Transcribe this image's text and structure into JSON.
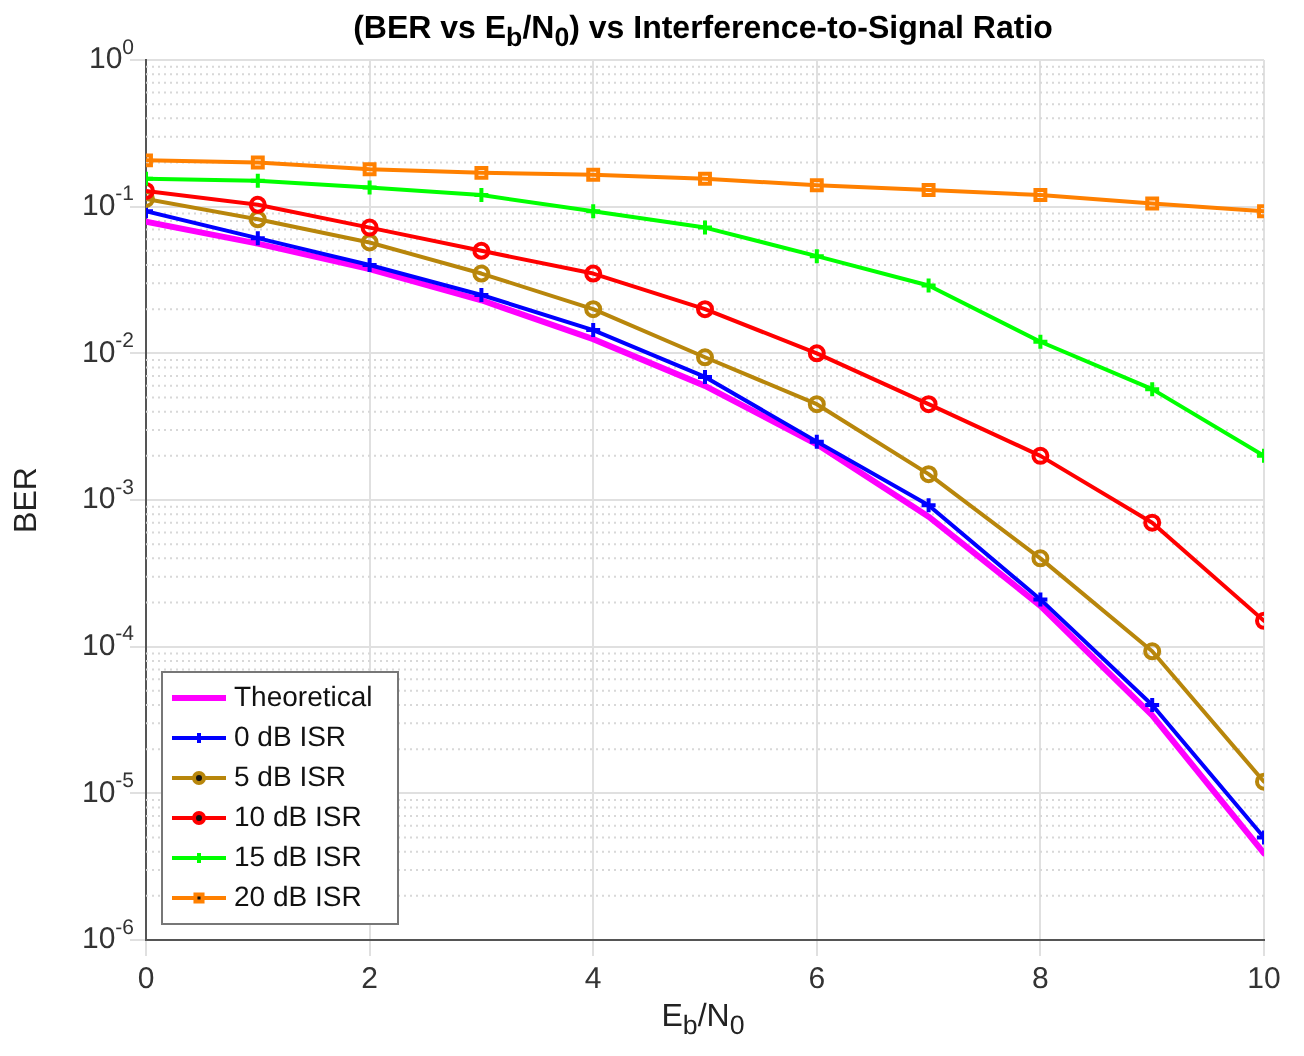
{
  "chart_data": {
    "type": "line",
    "title": "(BER vs E$_{b}$/N$_{0}$) vs Interference-to-Signal Ratio",
    "xlabel": "E$_{b}$/N$_{0}$",
    "ylabel": "BER",
    "x": [
      0,
      1,
      2,
      3,
      4,
      5,
      6,
      7,
      8,
      9,
      10
    ],
    "series": [
      {
        "name": "Theoretical",
        "color": "#ff00ff",
        "marker": "none",
        "values": [
          0.079,
          0.056,
          0.0375,
          0.023,
          0.0125,
          0.006,
          0.0024,
          0.00077,
          0.00019,
          3.4e-05,
          3.9e-06
        ]
      },
      {
        "name": "0 dB ISR",
        "color": "#0000ff",
        "marker": "cross",
        "values": [
          0.093,
          0.061,
          0.04,
          0.025,
          0.0144,
          0.0069,
          0.0025,
          0.00092,
          0.00021,
          4e-05,
          5e-06
        ]
      },
      {
        "name": "5 dB ISR",
        "color": "#b8860b",
        "marker": "circle",
        "values": [
          0.113,
          0.082,
          0.057,
          0.035,
          0.02,
          0.0094,
          0.0045,
          0.0015,
          0.0004,
          9.3e-05,
          1.2e-05
        ]
      },
      {
        "name": "10 dB ISR",
        "color": "#ff0000",
        "marker": "circle",
        "values": [
          0.128,
          0.103,
          0.072,
          0.05,
          0.035,
          0.02,
          0.01,
          0.0045,
          0.002,
          0.0007,
          0.00015
        ]
      },
      {
        "name": "15 dB ISR",
        "color": "#00ff00",
        "marker": "cross",
        "values": [
          0.155,
          0.15,
          0.135,
          0.12,
          0.093,
          0.072,
          0.046,
          0.029,
          0.012,
          0.0057,
          0.002
        ]
      },
      {
        "name": "20 dB ISR",
        "color": "#ff8000",
        "marker": "square",
        "values": [
          0.207,
          0.2,
          0.18,
          0.17,
          0.165,
          0.155,
          0.14,
          0.13,
          0.12,
          0.105,
          0.093
        ]
      }
    ],
    "log": "y",
    "xlim": [
      0,
      10
    ],
    "xticks": [
      0,
      2,
      4,
      6,
      8,
      10
    ],
    "ylim": [
      1e-06,
      1
    ],
    "yticks": [
      {
        "value": 1e-06,
        "label": "10$^{-6}$"
      },
      {
        "value": 1e-05,
        "label": "10$^{-5}$"
      },
      {
        "value": 0.0001,
        "label": "10$^{-4}$"
      },
      {
        "value": 0.001,
        "label": "10$^{-3}$"
      },
      {
        "value": 0.01,
        "label": "10$^{-2}$"
      },
      {
        "value": 0.1,
        "label": "10$^{-1}$"
      },
      {
        "value": 1,
        "label": "10$^{0}$"
      }
    ],
    "grid": true,
    "legend": "bottom left",
    "line_style": "solid"
  }
}
